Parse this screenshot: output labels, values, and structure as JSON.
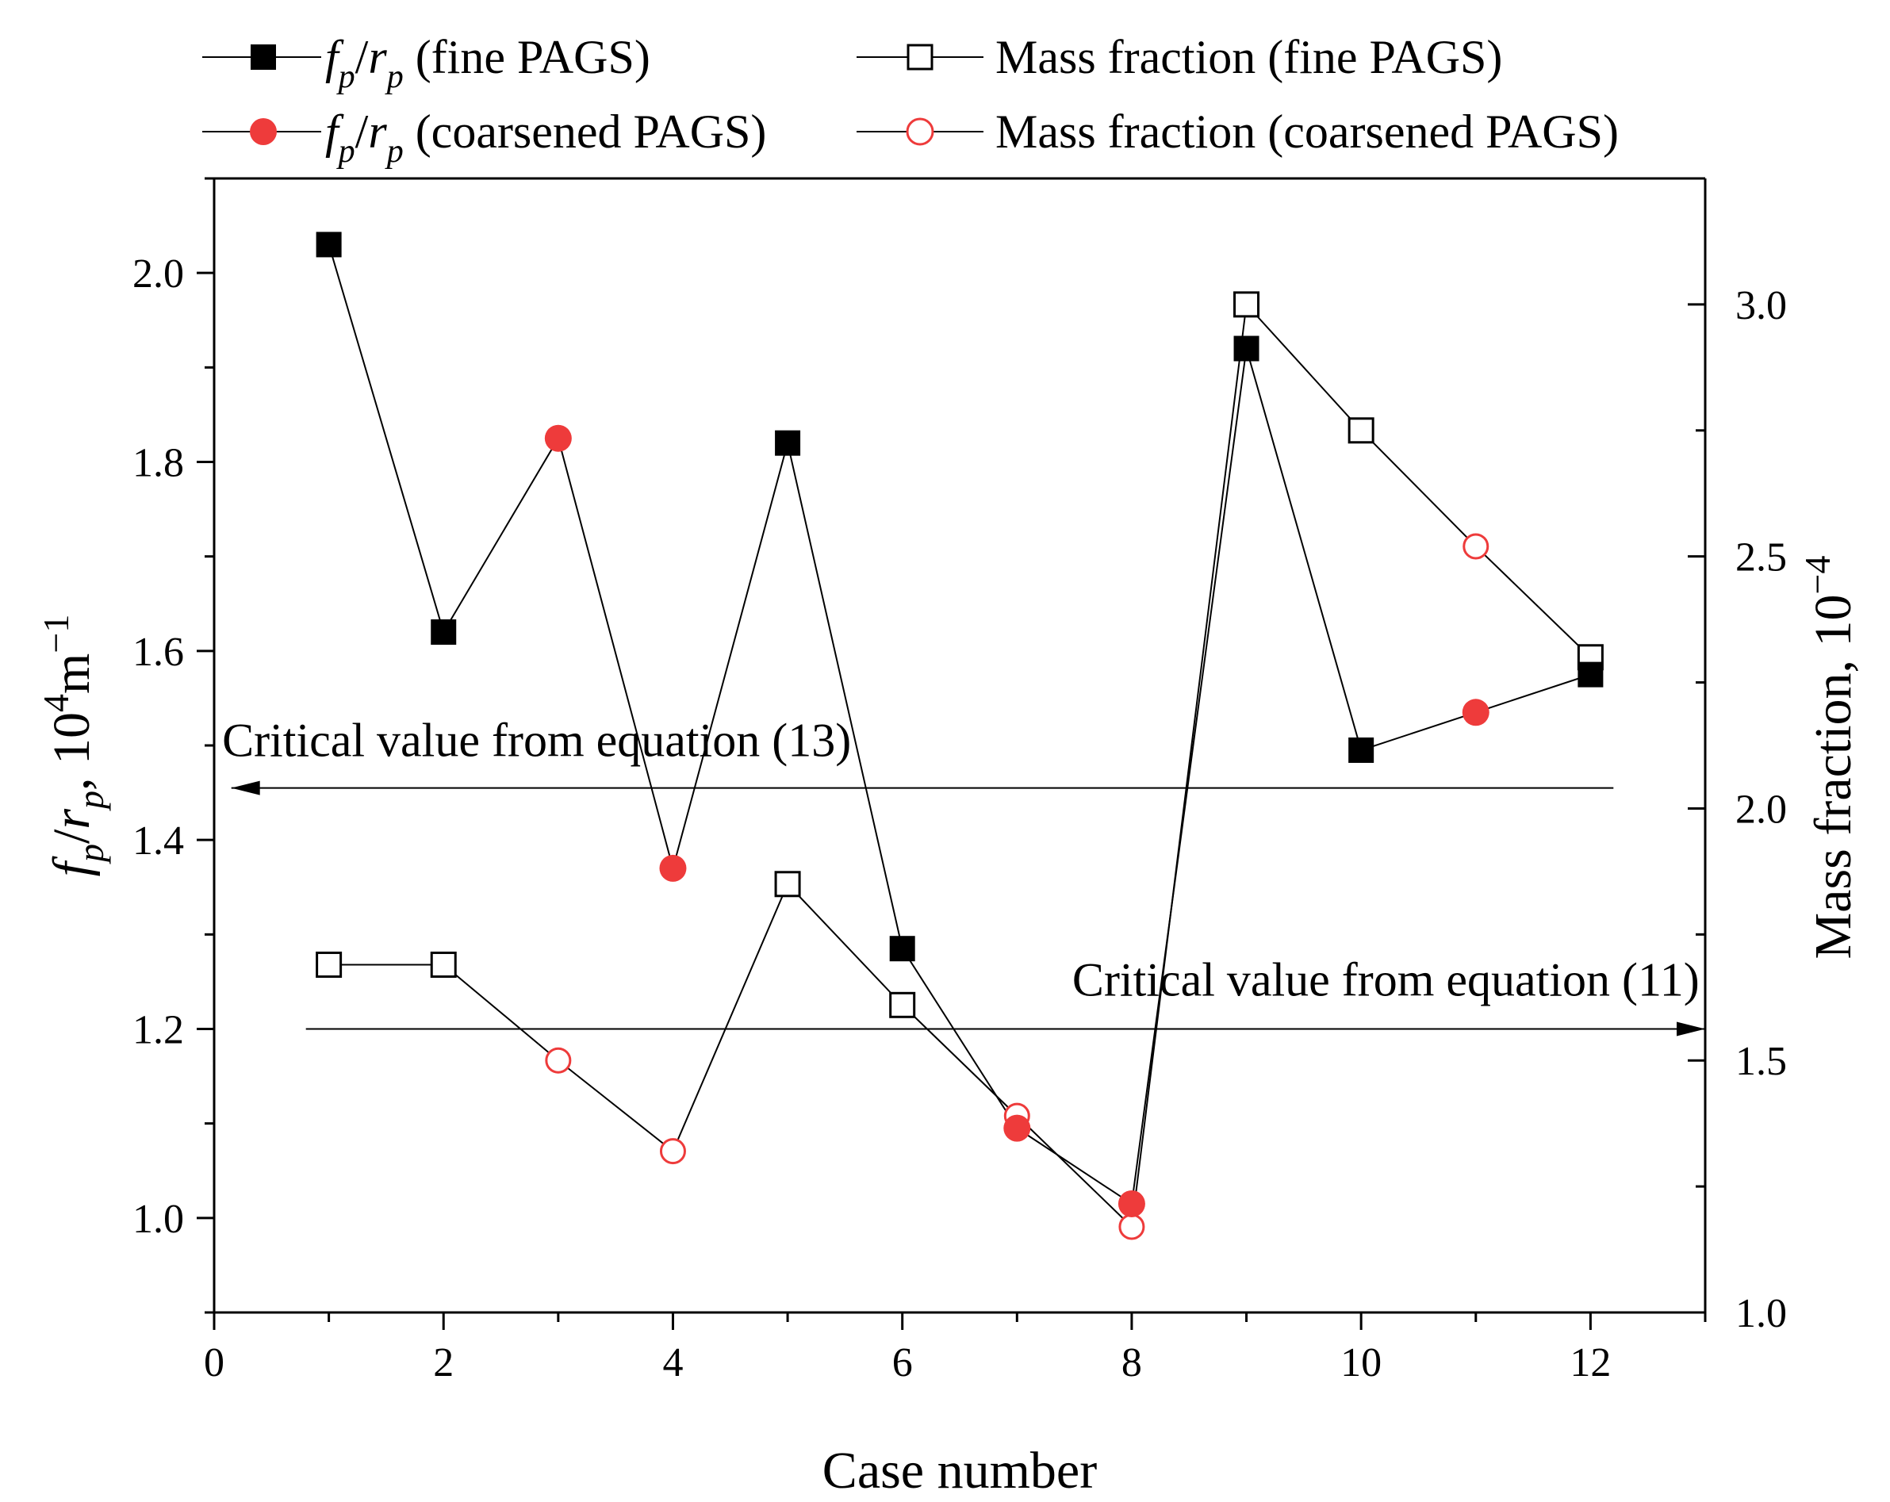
{
  "chart_data": {
    "type": "line",
    "xlabel": "Case number",
    "ylabel_left": "f_p/r_p, 10^4 m^-1",
    "ylabel_left_parts": {
      "f": "f",
      "p1": "p",
      "slash": "/",
      "r": "r",
      "p2": "p",
      "rest": ", 10",
      "exp": "4",
      "unit": "m",
      "unit_exp": "−1"
    },
    "ylabel_right": "Mass fraction, 10",
    "ylabel_right_exp": "−4",
    "xlim": [
      0,
      13
    ],
    "ylim_left": [
      0.9,
      2.1
    ],
    "ylim_right": [
      1.0,
      3.25
    ],
    "xticks": [
      "0",
      "2",
      "4",
      "6",
      "8",
      "10",
      "12"
    ],
    "yticks_left": [
      "1.0",
      "1.2",
      "1.4",
      "1.6",
      "1.8",
      "2.0"
    ],
    "yticks_right": [
      "1.0",
      "1.5",
      "2.0",
      "2.5",
      "3.0"
    ],
    "fp_rp_x": [
      1,
      2,
      3,
      4,
      5,
      6,
      7,
      8,
      9,
      10,
      11,
      12
    ],
    "fp_rp_y": [
      2.03,
      1.62,
      1.825,
      1.37,
      1.82,
      1.285,
      1.095,
      1.015,
      1.92,
      1.495,
      1.535,
      1.575
    ],
    "fp_rp_type": [
      "fine",
      "fine",
      "coarsened",
      "coarsened",
      "fine",
      "fine",
      "coarsened",
      "coarsened",
      "fine",
      "fine",
      "coarsened",
      "fine"
    ],
    "mass_x": [
      1,
      2,
      3,
      4,
      5,
      6,
      7,
      8,
      9,
      10,
      11,
      12
    ],
    "mass_y": [
      1.69,
      1.69,
      1.5,
      1.32,
      1.85,
      1.61,
      1.39,
      1.17,
      3.0,
      2.75,
      2.52,
      2.3
    ],
    "mass_type": [
      "fine",
      "fine",
      "coarsened",
      "coarsened",
      "fine",
      "fine",
      "coarsened",
      "coarsened",
      "fine",
      "fine",
      "coarsened",
      "fine"
    ],
    "critical_lines": [
      {
        "label": "Critical value from equation (13)",
        "axis": "left",
        "value": 1.455,
        "x_from": 12.2,
        "x_to": 0.15,
        "arrow": "left"
      },
      {
        "label": "Critical value from equation (11)",
        "axis": "left",
        "value": 1.2,
        "x_from": 0.8,
        "x_to": 13.0,
        "arrow": "right"
      }
    ]
  },
  "legend": {
    "items": [
      {
        "name": "fp-fine",
        "prefix_f": "f",
        "sub1": "p",
        "slash": "/",
        "prefix_r": "r",
        "sub2": "p",
        "label": " (fine PAGS)",
        "marker": "square-filled"
      },
      {
        "name": "mass-fine",
        "label": "Mass fraction (fine PAGS)",
        "marker": "square-open"
      },
      {
        "name": "fp-coarse",
        "prefix_f": "f",
        "sub1": "p",
        "slash": "/",
        "prefix_r": "r",
        "sub2": "p",
        "label": " (coarsened PAGS)",
        "marker": "circle-filled"
      },
      {
        "name": "mass-coarse",
        "label": "Mass fraction (coarsened PAGS)",
        "marker": "circle-open"
      }
    ]
  },
  "colors": {
    "fine": "#000000",
    "coarsened": "#ee3b3b",
    "line": "#000000"
  }
}
